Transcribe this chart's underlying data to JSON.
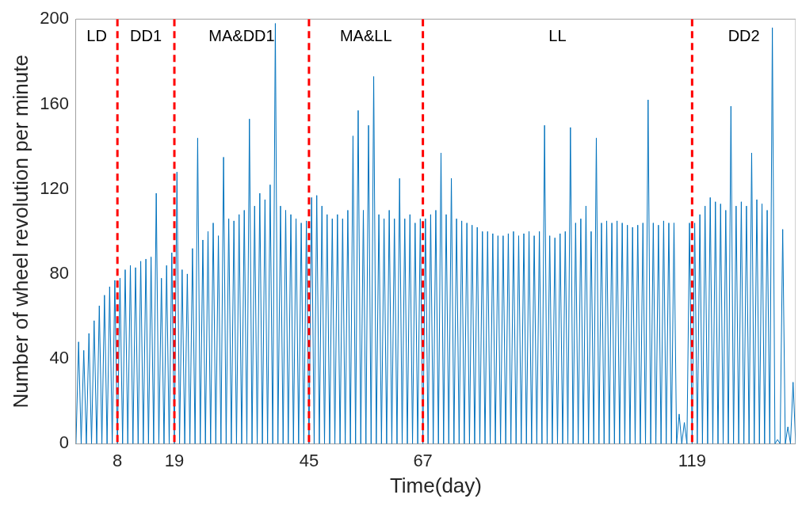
{
  "chart_data": {
    "type": "line",
    "xlabel": "Time(day)",
    "ylabel": "Number of wheel revolution per minute",
    "xlim": [
      0,
      139
    ],
    "ylim": [
      0,
      200
    ],
    "xticks": [
      8,
      19,
      45,
      67,
      119
    ],
    "yticks": [
      0,
      40,
      80,
      120,
      160,
      200
    ],
    "grid": false,
    "legend": false,
    "marker": "none",
    "line_style": "solid",
    "series": [
      {
        "color": "#0072bd",
        "x": [
          0,
          0.5,
          1,
          1.5,
          2,
          2.5,
          3,
          3.5,
          4,
          4.5,
          5,
          5.5,
          6,
          6.5,
          7,
          7.5,
          8,
          8.5,
          9,
          9.5,
          10,
          10.5,
          11,
          11.5,
          12,
          12.5,
          13,
          13.5,
          14,
          14.5,
          15,
          15.5,
          16,
          16.5,
          17,
          17.5,
          18,
          18.5,
          19,
          19.5,
          20,
          20.5,
          21,
          21.5,
          22,
          22.5,
          23,
          23.5,
          24,
          24.5,
          25,
          25.5,
          26,
          26.5,
          27,
          27.5,
          28,
          28.5,
          29,
          29.5,
          30,
          30.5,
          31,
          31.5,
          32,
          32.5,
          33,
          33.5,
          34,
          34.5,
          35,
          35.5,
          36,
          36.5,
          37,
          37.5,
          38,
          38.5,
          39,
          39.5,
          40,
          40.5,
          41,
          41.5,
          42,
          42.5,
          43,
          43.5,
          44,
          44.5,
          45,
          45.5,
          46,
          46.5,
          47,
          47.5,
          48,
          48.5,
          49,
          49.5,
          50,
          50.5,
          51,
          51.5,
          52,
          52.5,
          53,
          53.5,
          54,
          54.5,
          55,
          55.5,
          56,
          56.5,
          57,
          57.5,
          58,
          58.5,
          59,
          59.5,
          60,
          60.5,
          61,
          61.5,
          62,
          62.5,
          63,
          63.5,
          64,
          64.5,
          65,
          65.5,
          66,
          66.5,
          67,
          67.5,
          68,
          68.5,
          69,
          69.5,
          70,
          70.5,
          71,
          71.5,
          72,
          72.5,
          73,
          73.5,
          74,
          74.5,
          75,
          75.5,
          76,
          76.5,
          77,
          77.5,
          78,
          78.5,
          79,
          79.5,
          80,
          80.5,
          81,
          81.5,
          82,
          82.5,
          83,
          83.5,
          84,
          84.5,
          85,
          85.5,
          86,
          86.5,
          87,
          87.5,
          88,
          88.5,
          89,
          89.5,
          90,
          90.5,
          91,
          91.5,
          92,
          92.5,
          93,
          93.5,
          94,
          94.5,
          95,
          95.5,
          96,
          96.5,
          97,
          97.5,
          98,
          98.5,
          99,
          99.5,
          100,
          100.5,
          101,
          101.5,
          102,
          102.5,
          103,
          103.5,
          104,
          104.5,
          105,
          105.5,
          106,
          106.5,
          107,
          107.5,
          108,
          108.5,
          109,
          109.5,
          110,
          110.5,
          111,
          111.5,
          112,
          112.5,
          113,
          113.5,
          114,
          114.5,
          115,
          115.5,
          116,
          116.5,
          117,
          117.5,
          118,
          118.5,
          119,
          119.5,
          120,
          120.5,
          121,
          121.5,
          122,
          122.5,
          123,
          123.5,
          124,
          124.5,
          125,
          125.5,
          126,
          126.5,
          127,
          127.5,
          128,
          128.5,
          129,
          129.5,
          130,
          130.5,
          131,
          131.5,
          132,
          132.5,
          133,
          133.5,
          134,
          134.5,
          135,
          135.5,
          136,
          136.5,
          137,
          137.5,
          138,
          138.5,
          139
        ],
        "values": [
          0,
          48,
          0,
          44,
          0,
          52,
          0,
          58,
          0,
          65,
          0,
          70,
          0,
          74,
          0,
          77,
          0,
          78,
          0,
          82,
          0,
          84,
          0,
          83,
          0,
          86,
          0,
          87,
          0,
          88,
          0,
          118,
          0,
          78,
          0,
          84,
          0,
          90,
          0,
          128,
          0,
          82,
          0,
          80,
          0,
          92,
          0,
          144,
          0,
          96,
          0,
          100,
          0,
          104,
          0,
          98,
          0,
          135,
          0,
          106,
          0,
          105,
          0,
          108,
          0,
          110,
          0,
          153,
          0,
          112,
          0,
          118,
          0,
          115,
          0,
          122,
          0,
          198,
          0,
          112,
          0,
          110,
          0,
          108,
          0,
          106,
          0,
          104,
          0,
          105,
          0,
          116,
          0,
          117,
          0,
          112,
          0,
          108,
          0,
          106,
          0,
          108,
          0,
          106,
          0,
          110,
          0,
          145,
          0,
          157,
          0,
          110,
          0,
          150,
          0,
          173,
          0,
          108,
          0,
          106,
          0,
          110,
          0,
          106,
          0,
          125,
          0,
          106,
          0,
          108,
          0,
          104,
          0,
          106,
          0,
          106,
          0,
          108,
          0,
          110,
          0,
          137,
          0,
          108,
          0,
          125,
          0,
          106,
          0,
          105,
          0,
          104,
          0,
          103,
          0,
          102,
          0,
          100,
          0,
          100,
          0,
          99,
          0,
          98,
          0,
          98,
          0,
          99,
          0,
          100,
          0,
          98,
          0,
          99,
          0,
          100,
          0,
          98,
          0,
          100,
          0,
          150,
          0,
          98,
          0,
          97,
          0,
          99,
          0,
          100,
          0,
          149,
          0,
          104,
          0,
          106,
          0,
          112,
          0,
          100,
          0,
          144,
          0,
          104,
          0,
          105,
          0,
          104,
          0,
          105,
          0,
          104,
          0,
          103,
          0,
          102,
          0,
          103,
          0,
          104,
          0,
          162,
          0,
          104,
          0,
          103,
          0,
          105,
          0,
          104,
          0,
          104,
          0,
          14,
          0,
          10,
          0,
          104,
          0,
          104,
          0,
          108,
          0,
          112,
          0,
          116,
          0,
          114,
          0,
          113,
          0,
          110,
          0,
          159,
          0,
          112,
          0,
          114,
          0,
          112,
          0,
          137,
          0,
          115,
          0,
          113,
          0,
          110,
          0,
          196,
          0,
          2,
          0,
          101,
          0,
          8,
          0,
          29,
          0
        ]
      }
    ],
    "ref_lines": [
      {
        "axis": "x",
        "value": 8,
        "color": "#ff0000",
        "line_style": "dashed"
      },
      {
        "axis": "x",
        "value": 19,
        "color": "#ff0000",
        "line_style": "dashed"
      },
      {
        "axis": "x",
        "value": 45,
        "color": "#ff0000",
        "line_style": "dashed"
      },
      {
        "axis": "x",
        "value": 67,
        "color": "#ff0000",
        "line_style": "dashed"
      },
      {
        "axis": "x",
        "value": 119,
        "color": "#ff0000",
        "line_style": "dashed"
      }
    ],
    "annotations": [
      "LD",
      "DD1",
      "MA&DD1",
      "MA&LL",
      "LL",
      "DD2"
    ]
  }
}
